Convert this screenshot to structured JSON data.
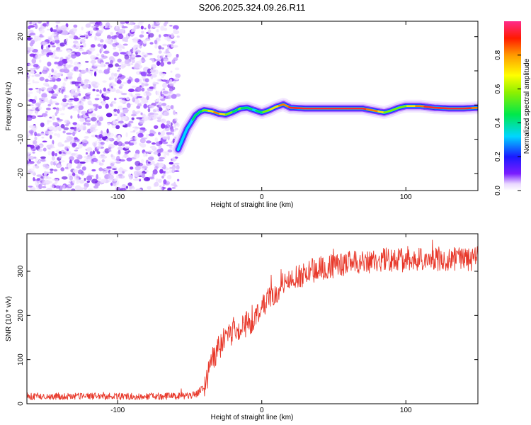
{
  "title": "S206.2025.324.09.26.R11",
  "chart_data": [
    {
      "type": "heatmap",
      "xlabel": "Height of straight line (km)",
      "ylabel": "Frequency (Hz)",
      "xlim": [
        -163,
        150
      ],
      "ylim": [
        -25,
        24.5
      ],
      "xticks": [
        -100,
        0,
        100
      ],
      "yticks": [
        -20,
        -10,
        0,
        10,
        20
      ],
      "colorbar": {
        "label": "Normalized spectral amplitude",
        "range": [
          0,
          1
        ],
        "ticks": [
          "0.0",
          "0.2",
          "0.4",
          "0.6",
          "0.8"
        ],
        "tick_values": [
          0,
          0.2,
          0.4,
          0.6,
          0.8
        ]
      },
      "noise_region_x": [
        -163,
        -58
      ],
      "ridge": {
        "x": [
          -58,
          -55,
          -52,
          -49,
          -46,
          -43,
          -40,
          -35,
          -30,
          -25,
          -20,
          -15,
          -10,
          -5,
          0,
          5,
          10,
          15,
          20,
          30,
          40,
          50,
          60,
          70,
          80,
          85,
          90,
          95,
          100,
          110,
          120,
          130,
          140,
          150
        ],
        "freq": [
          -13,
          -10,
          -7,
          -5,
          -3,
          -2,
          -1.5,
          -1.8,
          -2.5,
          -2.8,
          -2.0,
          -1.0,
          -0.8,
          -1.5,
          -2.2,
          -1.5,
          -0.5,
          0.2,
          -0.8,
          -1.0,
          -1.0,
          -1.0,
          -1.0,
          -1.0,
          -1.8,
          -2.2,
          -1.6,
          -0.8,
          -0.3,
          -0.3,
          -0.8,
          -1.0,
          -1.0,
          -0.8
        ],
        "amp": [
          0.35,
          0.4,
          0.4,
          0.45,
          0.5,
          0.55,
          0.6,
          0.8,
          0.85,
          0.7,
          0.55,
          0.6,
          0.5,
          0.45,
          0.55,
          0.7,
          0.8,
          0.85,
          0.95,
          1.0,
          1.0,
          1.0,
          1.0,
          0.95,
          0.85,
          0.7,
          0.6,
          0.6,
          0.7,
          0.9,
          1.0,
          1.0,
          1.0,
          0.85
        ]
      }
    },
    {
      "type": "line",
      "xlabel": "Height of straight line (km)",
      "ylabel": "SNR (10 * v/v)",
      "xlim": [
        -163,
        150
      ],
      "ylim": [
        0,
        385
      ],
      "xticks": [
        -100,
        0,
        100
      ],
      "yticks": [
        0,
        100,
        200,
        300
      ],
      "series_color": "#e8382a",
      "mean_curve": {
        "x": [
          -163,
          -60,
          -50,
          -45,
          -40,
          -35,
          -30,
          -25,
          -20,
          -15,
          -10,
          -5,
          0,
          5,
          10,
          15,
          20,
          25,
          30,
          40,
          50,
          60,
          70,
          80,
          90,
          100,
          110,
          120,
          130,
          140,
          150
        ],
        "y": [
          17,
          17,
          18,
          22,
          40,
          85,
          125,
          150,
          165,
          175,
          180,
          195,
          215,
          235,
          255,
          270,
          280,
          288,
          295,
          305,
          312,
          318,
          322,
          325,
          325,
          326,
          327,
          328,
          328,
          328,
          328
        ]
      }
    }
  ]
}
